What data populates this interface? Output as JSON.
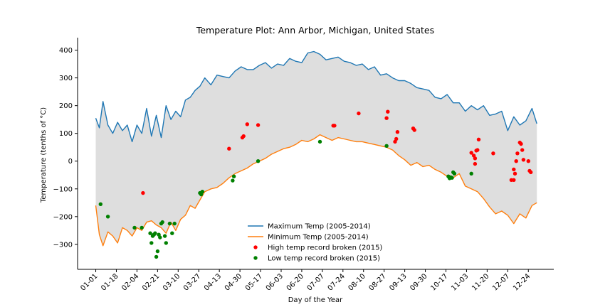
{
  "chart_data": {
    "type": "line",
    "title": "Temperature Plot: Ann Arbor, Michigan, United States",
    "xlabel": "Day of the Year",
    "ylabel": "Temperature (tenths of °C)",
    "xlim": [
      -15,
      378
    ],
    "ylim": [
      -390,
      445
    ],
    "x_ticks": [
      {
        "label": "01-01",
        "day": 0
      },
      {
        "label": "01-18",
        "day": 17
      },
      {
        "label": "02-04",
        "day": 34
      },
      {
        "label": "02-21",
        "day": 51
      },
      {
        "label": "03-10",
        "day": 68
      },
      {
        "label": "03-27",
        "day": 85
      },
      {
        "label": "04-13",
        "day": 102
      },
      {
        "label": "04-30",
        "day": 119
      },
      {
        "label": "05-17",
        "day": 136
      },
      {
        "label": "06-03",
        "day": 153
      },
      {
        "label": "06-20",
        "day": 170
      },
      {
        "label": "07-07",
        "day": 187
      },
      {
        "label": "07-24",
        "day": 204
      },
      {
        "label": "08-10",
        "day": 221
      },
      {
        "label": "08-27",
        "day": 238
      },
      {
        "label": "09-13",
        "day": 255
      },
      {
        "label": "09-30",
        "day": 272
      },
      {
        "label": "10-17",
        "day": 289
      },
      {
        "label": "11-03",
        "day": 306
      },
      {
        "label": "11-20",
        "day": 323
      },
      {
        "label": "12-07",
        "day": 340
      },
      {
        "label": "12-24",
        "day": 357
      }
    ],
    "y_ticks": [
      400,
      300,
      200,
      100,
      0,
      -100,
      -200,
      -300
    ],
    "fill_color": "#dedede",
    "series": [
      {
        "name": "Maximum Temp (2005-2014)",
        "color": "#1f77b4",
        "days": [
          0,
          3,
          6,
          10,
          14,
          18,
          22,
          26,
          30,
          34,
          38,
          42,
          46,
          50,
          54,
          58,
          62,
          66,
          70,
          74,
          78,
          82,
          86,
          90,
          95,
          100,
          105,
          110,
          115,
          120,
          125,
          130,
          135,
          140,
          145,
          150,
          155,
          160,
          165,
          170,
          175,
          180,
          185,
          190,
          195,
          200,
          205,
          210,
          215,
          220,
          225,
          230,
          235,
          240,
          245,
          250,
          255,
          260,
          265,
          270,
          275,
          280,
          285,
          290,
          295,
          300,
          305,
          310,
          315,
          320,
          325,
          330,
          335,
          340,
          345,
          350,
          355,
          360,
          364
        ],
        "values": [
          155,
          120,
          215,
          130,
          100,
          140,
          110,
          130,
          70,
          130,
          100,
          190,
          90,
          165,
          85,
          200,
          150,
          180,
          160,
          220,
          230,
          255,
          270,
          300,
          275,
          310,
          305,
          300,
          325,
          340,
          330,
          330,
          345,
          355,
          335,
          350,
          345,
          370,
          360,
          355,
          390,
          395,
          385,
          365,
          370,
          375,
          360,
          355,
          345,
          350,
          330,
          340,
          310,
          315,
          300,
          290,
          290,
          280,
          265,
          260,
          255,
          230,
          225,
          240,
          210,
          210,
          180,
          200,
          185,
          200,
          165,
          170,
          180,
          110,
          160,
          130,
          145,
          190,
          135
        ]
      },
      {
        "name": "Minimum Temp (2005-2014)",
        "color": "#ff7f0e",
        "days": [
          0,
          3,
          6,
          10,
          14,
          18,
          22,
          26,
          30,
          34,
          38,
          42,
          46,
          50,
          54,
          58,
          62,
          66,
          70,
          74,
          78,
          82,
          86,
          90,
          95,
          100,
          105,
          110,
          115,
          120,
          125,
          130,
          135,
          140,
          145,
          150,
          155,
          160,
          165,
          170,
          175,
          180,
          185,
          190,
          195,
          200,
          205,
          210,
          215,
          220,
          225,
          230,
          235,
          240,
          245,
          250,
          255,
          260,
          265,
          270,
          275,
          280,
          285,
          290,
          295,
          300,
          305,
          310,
          315,
          320,
          325,
          330,
          335,
          340,
          345,
          350,
          355,
          360,
          364
        ],
        "values": [
          -160,
          -265,
          -305,
          -255,
          -270,
          -295,
          -240,
          -250,
          -270,
          -240,
          -250,
          -220,
          -215,
          -230,
          -240,
          -260,
          -220,
          -250,
          -210,
          -195,
          -160,
          -170,
          -140,
          -110,
          -100,
          -95,
          -80,
          -60,
          -45,
          -35,
          -25,
          -10,
          0,
          10,
          25,
          35,
          45,
          50,
          60,
          75,
          70,
          80,
          95,
          85,
          75,
          85,
          80,
          75,
          70,
          70,
          65,
          60,
          55,
          50,
          40,
          20,
          5,
          -15,
          -5,
          -20,
          -15,
          -30,
          -40,
          -55,
          -60,
          -45,
          -90,
          -100,
          -110,
          -135,
          -165,
          -190,
          -180,
          -195,
          -225,
          -190,
          -205,
          -160,
          -150
        ]
      }
    ],
    "scatter_series": [
      {
        "name": "High temp record broken (2015)",
        "color": "#ff0000",
        "points": [
          [
            39,
            -115
          ],
          [
            110,
            45
          ],
          [
            121,
            85
          ],
          [
            122,
            90
          ],
          [
            125,
            133
          ],
          [
            134,
            130
          ],
          [
            196,
            128
          ],
          [
            197,
            128
          ],
          [
            217,
            172
          ],
          [
            240,
            155
          ],
          [
            241,
            178
          ],
          [
            247,
            70
          ],
          [
            248,
            80
          ],
          [
            249,
            105
          ],
          [
            262,
            118
          ],
          [
            263,
            112
          ],
          [
            310,
            30
          ],
          [
            312,
            20
          ],
          [
            313,
            10
          ],
          [
            313,
            -10
          ],
          [
            314,
            38
          ],
          [
            315,
            40
          ],
          [
            316,
            78
          ],
          [
            328,
            28
          ],
          [
            347,
            0
          ],
          [
            348,
            28
          ],
          [
            350,
            67
          ],
          [
            351,
            62
          ],
          [
            352,
            40
          ],
          [
            353,
            5
          ],
          [
            345,
            -30
          ],
          [
            346,
            -45
          ],
          [
            345,
            -68
          ],
          [
            343,
            -68
          ],
          [
            357,
            0
          ],
          [
            358,
            -35
          ],
          [
            359,
            -40
          ]
        ]
      },
      {
        "name": "Low temp record broken (2015)",
        "color": "#008000",
        "points": [
          [
            4,
            -155
          ],
          [
            10,
            -200
          ],
          [
            32,
            -240
          ],
          [
            38,
            -240
          ],
          [
            45,
            -260
          ],
          [
            46,
            -295
          ],
          [
            47,
            -270
          ],
          [
            48,
            -265
          ],
          [
            49,
            -260
          ],
          [
            50,
            -345
          ],
          [
            51,
            -325
          ],
          [
            52,
            -265
          ],
          [
            53,
            -275
          ],
          [
            54,
            -225
          ],
          [
            55,
            -220
          ],
          [
            57,
            -270
          ],
          [
            58,
            -295
          ],
          [
            61,
            -225
          ],
          [
            63,
            -260
          ],
          [
            65,
            -225
          ],
          [
            86,
            -115
          ],
          [
            87,
            -120
          ],
          [
            88,
            -110
          ],
          [
            113,
            -70
          ],
          [
            114,
            -55
          ],
          [
            134,
            0
          ],
          [
            185,
            70
          ],
          [
            240,
            55
          ],
          [
            291,
            -55
          ],
          [
            292,
            -62
          ],
          [
            293,
            -58
          ],
          [
            294,
            -60
          ],
          [
            295,
            -40
          ],
          [
            296,
            -45
          ],
          [
            310,
            -45
          ]
        ]
      }
    ],
    "legend": {
      "placement": "lower-center",
      "entries": [
        "Maximum Temp (2005-2014)",
        "Minimum Temp (2005-2014)",
        "High temp record broken (2015)",
        "Low temp record broken (2015)"
      ]
    },
    "grid": false
  }
}
